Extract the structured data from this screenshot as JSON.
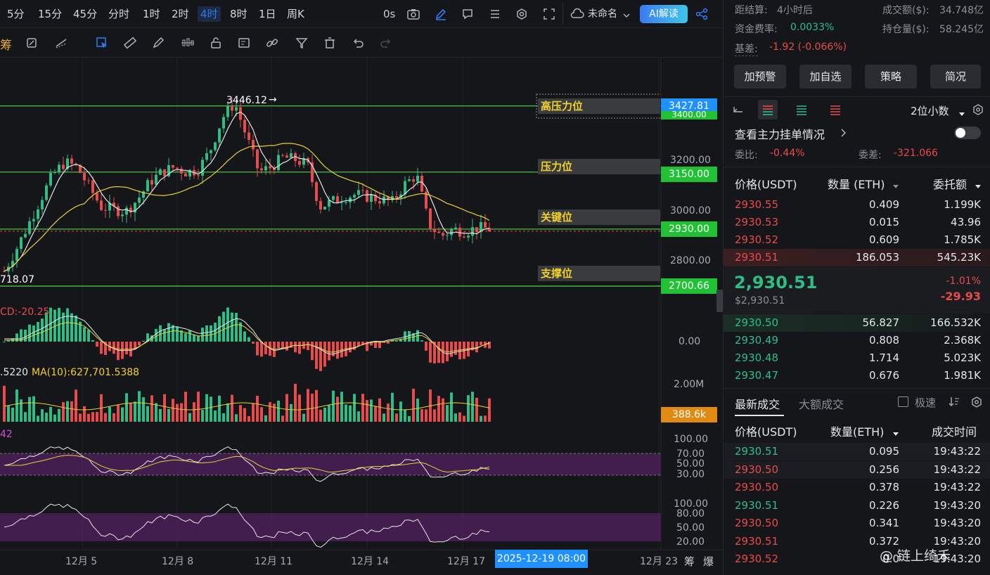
{
  "timeframes": [
    "5分",
    "15分",
    "45分",
    "分时",
    "1时",
    "2时",
    "4时",
    "8时",
    "1日",
    "周K"
  ],
  "active_timeframe": "4时",
  "toolbar": {
    "countdown": "0s",
    "workspace": "未命名",
    "ai_label": "AI解读"
  },
  "drawing_prefix": "筹",
  "chart": {
    "high_marker": "3446.12",
    "low_marker": "718.07",
    "y_labels": [
      "3200.00",
      "3000.00",
      "2800.00"
    ],
    "price_tags": {
      "resistance_high": "3427.81",
      "resistance_high_under": "3400.00",
      "resistance": "3150.00",
      "key": "2930.00",
      "support": "2700.66"
    },
    "zones": {
      "high": "高压力位",
      "resistance": "压力位",
      "key": "关键位",
      "support": "支撑位"
    },
    "macd_label": "CD:-20.25",
    "macd_zero": "0.00",
    "vol_label_left": ".5220",
    "vol_ma_label": "MA(10):627,701.5388",
    "vol_axis_top": "2.00M",
    "vol_tag": "388.6k",
    "rsi_label": "42",
    "rsi_axis": [
      "100.00",
      "70.00",
      "50.00",
      "30.00"
    ],
    "kdj_axis": [
      "100.00",
      "80.00",
      "50.00",
      "20.00"
    ],
    "x_labels": [
      "12月 5",
      "12月 8",
      "12月 11",
      "12月 14",
      "12月 17",
      "12月 23"
    ],
    "crosshair_date": "2025-12-19 08:00",
    "bottom_icons": [
      "筹",
      "爆"
    ],
    "colors": {
      "up": "#2fbd85",
      "down": "#e84b4b",
      "accent": "#2f7bf5",
      "zone_text": "#f2d12a",
      "tag_green": "#21c135"
    }
  },
  "info": {
    "settlement_label": "距结算:",
    "settlement_value": "4小时后",
    "turnover_label": "成交额($):",
    "turnover_value": "34.748亿",
    "funding_label": "资金费率:",
    "funding_value": "0.0033%",
    "oi_label": "持仓量($):",
    "oi_value": "58.245亿",
    "basis_label": "基差:",
    "basis_value": "-1.92 (-0.066%)"
  },
  "buttons": [
    "加预警",
    "加自选",
    "策略",
    "简况"
  ],
  "orderbook": {
    "precision": "2位小数",
    "main_orders": "查看主力挂单情况",
    "ratio_label": "委比:",
    "ratio_value": "-0.44%",
    "diff_label": "委差:",
    "diff_value": "-321.066",
    "headers": [
      "价格(USDT)",
      "数量 (ETH)",
      "委托额"
    ],
    "asks": [
      [
        "2930.55",
        "0.409",
        "1.199K"
      ],
      [
        "2930.53",
        "0.015",
        "43.96"
      ],
      [
        "2930.52",
        "0.609",
        "1.785K"
      ],
      [
        "2930.51",
        "186.053",
        "545.23K"
      ]
    ],
    "last_price": "2,930.51",
    "last_usd": "$2,930.51",
    "change_pct": "-1.01%",
    "change_abs": "-29.93",
    "bids": [
      [
        "2930.50",
        "56.827",
        "166.532K"
      ],
      [
        "2930.49",
        "0.808",
        "2.368K"
      ],
      [
        "2930.48",
        "1.714",
        "5.023K"
      ],
      [
        "2930.47",
        "0.676",
        "1.981K"
      ]
    ]
  },
  "trades": {
    "tabs": [
      "最新成交",
      "大额成交"
    ],
    "speed_label": "极速",
    "headers": [
      "价格(USDT)",
      "数量(ETH)",
      "成交时间"
    ],
    "rows": [
      [
        "2930.51",
        "0.095",
        "19:43:22",
        "up"
      ],
      [
        "2930.50",
        "0.256",
        "19:43:22",
        "down"
      ],
      [
        "2930.50",
        "0.378",
        "19:43:22",
        "down"
      ],
      [
        "2930.51",
        "0.226",
        "19:43:20",
        "up"
      ],
      [
        "2930.50",
        "0.341",
        "19:43:20",
        "down"
      ],
      [
        "2930.51",
        "0.372",
        "19:43:20",
        "down"
      ],
      [
        "2930.52",
        "0.0",
        "19:43:20",
        "down"
      ]
    ]
  },
  "watermark": "@ 链上绮禾"
}
